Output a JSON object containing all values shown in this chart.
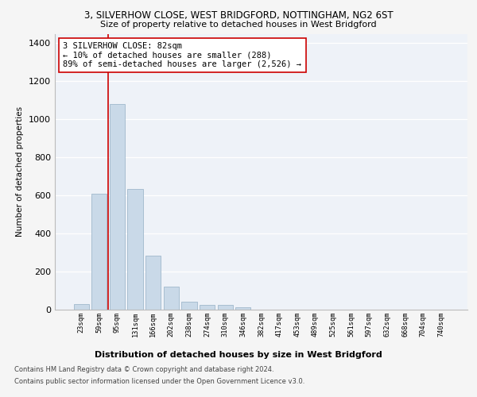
{
  "title": "3, SILVERHOW CLOSE, WEST BRIDGFORD, NOTTINGHAM, NG2 6ST",
  "subtitle": "Size of property relative to detached houses in West Bridgford",
  "xlabel": "Distribution of detached houses by size in West Bridgford",
  "ylabel": "Number of detached properties",
  "categories": [
    "23sqm",
    "59sqm",
    "95sqm",
    "131sqm",
    "166sqm",
    "202sqm",
    "238sqm",
    "274sqm",
    "310sqm",
    "346sqm",
    "382sqm",
    "417sqm",
    "453sqm",
    "489sqm",
    "525sqm",
    "561sqm",
    "597sqm",
    "632sqm",
    "668sqm",
    "704sqm",
    "740sqm"
  ],
  "values": [
    30,
    610,
    1080,
    635,
    285,
    120,
    42,
    25,
    25,
    14,
    0,
    0,
    0,
    0,
    0,
    0,
    0,
    0,
    0,
    0,
    0
  ],
  "bar_color": "#c9d9e8",
  "bar_edge_color": "#a0b8cc",
  "vline_color": "#cc0000",
  "annotation_text": "3 SILVERHOW CLOSE: 82sqm\n← 10% of detached houses are smaller (288)\n89% of semi-detached houses are larger (2,526) →",
  "annotation_box_color": "#ffffff",
  "annotation_box_edge": "#cc0000",
  "ylim": [
    0,
    1450
  ],
  "yticks": [
    0,
    200,
    400,
    600,
    800,
    1000,
    1200,
    1400
  ],
  "background_color": "#eef2f8",
  "grid_color": "#ffffff",
  "fig_facecolor": "#f5f5f5",
  "footer1": "Contains HM Land Registry data © Crown copyright and database right 2024.",
  "footer2": "Contains public sector information licensed under the Open Government Licence v3.0."
}
